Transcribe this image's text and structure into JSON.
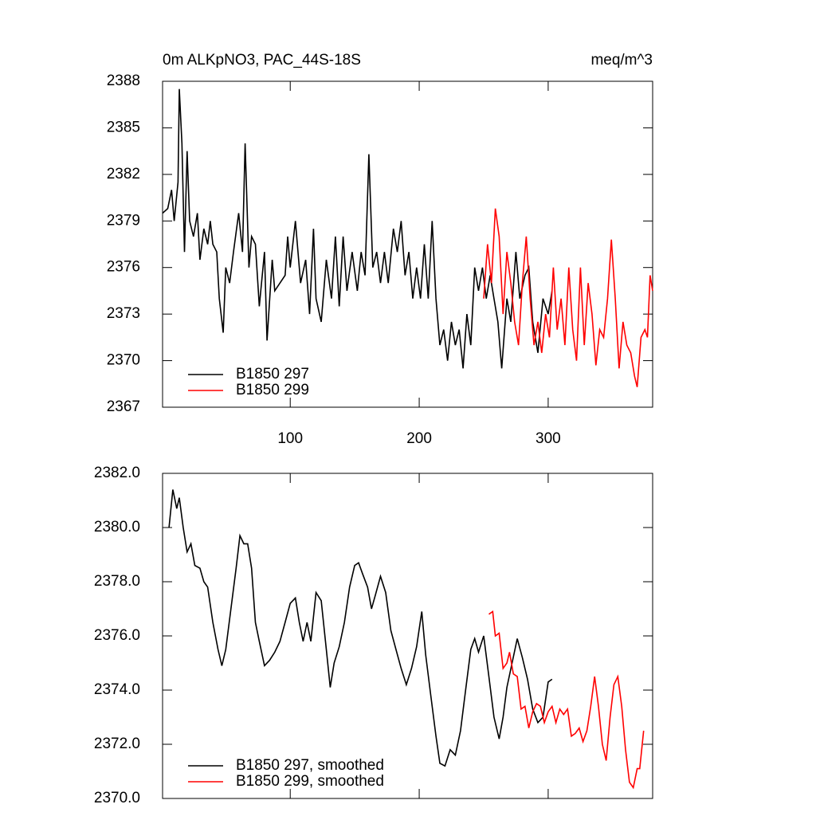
{
  "chart_data": [
    {
      "type": "line",
      "title": "0m ALKpNO3, PAC_44S-18S",
      "units": "meq/m^3",
      "xlim": [
        1,
        381
      ],
      "xticks": [
        100,
        200,
        300
      ],
      "show_xtick_labels": true,
      "ylim": [
        2367,
        2388
      ],
      "yticks": [
        2367,
        2370,
        2373,
        2376,
        2379,
        2382,
        2385,
        2388
      ],
      "legend": "bottom-left",
      "series": [
        {
          "name": "B1850 297",
          "color": "#000000",
          "x": [
            1,
            5,
            8,
            10,
            13,
            14,
            16,
            18,
            20,
            22,
            25,
            28,
            30,
            33,
            36,
            38,
            40,
            43,
            45,
            48,
            50,
            53,
            56,
            60,
            63,
            65,
            68,
            70,
            73,
            76,
            80,
            82,
            86,
            88,
            92,
            96,
            98,
            100,
            104,
            108,
            112,
            115,
            118,
            120,
            124,
            128,
            132,
            135,
            138,
            141,
            144,
            148,
            152,
            155,
            158,
            161,
            164,
            167,
            170,
            173,
            176,
            180,
            183,
            186,
            189,
            192,
            195,
            198,
            201,
            204,
            207,
            210,
            213,
            216,
            219,
            222,
            225,
            228,
            231,
            234,
            237,
            240,
            243,
            246,
            249,
            252,
            255,
            258,
            261,
            264,
            268,
            271,
            275,
            278,
            282,
            285,
            288,
            292,
            296,
            300,
            303
          ],
          "values": [
            2379.5,
            2379.8,
            2381,
            2379,
            2381.5,
            2387.5,
            2384,
            2377,
            2383.5,
            2379,
            2378,
            2379.5,
            2376.5,
            2378.5,
            2377.5,
            2379,
            2377.5,
            2377,
            2374,
            2371.8,
            2376,
            2375,
            2377,
            2379.5,
            2377,
            2384,
            2376,
            2378,
            2377.5,
            2373.5,
            2377,
            2371.3,
            2376.5,
            2374.5,
            2375,
            2375.5,
            2378,
            2376,
            2379,
            2375,
            2376.5,
            2373,
            2378.5,
            2374,
            2372.5,
            2376.5,
            2374,
            2378,
            2373.5,
            2378,
            2374.5,
            2377,
            2374.5,
            2377,
            2375.5,
            2383.3,
            2376,
            2377,
            2375,
            2377,
            2375,
            2378.5,
            2377,
            2379,
            2375.5,
            2377,
            2374,
            2376,
            2374,
            2377.5,
            2374,
            2379,
            2374,
            2371,
            2372,
            2370,
            2372.5,
            2371,
            2372,
            2369.5,
            2373,
            2371,
            2376,
            2374.5,
            2376,
            2374,
            2375.5,
            2374,
            2372.5,
            2369.5,
            2374,
            2372.5,
            2377,
            2374,
            2375.5,
            2376,
            2372.5,
            2370.5,
            2374,
            2373,
            2374.5
          ]
        },
        {
          "name": "B1850 299",
          "color": "#ff0000",
          "x": [
            250,
            253,
            256,
            259,
            262,
            265,
            268,
            271,
            274,
            277,
            280,
            283,
            286,
            289,
            292,
            295,
            298,
            301,
            304,
            307,
            310,
            313,
            316,
            319,
            322,
            325,
            328,
            331,
            334,
            337,
            340,
            343,
            346,
            349,
            352,
            355,
            358,
            361,
            364,
            367,
            369,
            372,
            375,
            377,
            379,
            381
          ],
          "values": [
            2374,
            2377.5,
            2375,
            2379.8,
            2378,
            2373,
            2377,
            2375,
            2372.5,
            2371,
            2375,
            2378,
            2374,
            2371,
            2372.5,
            2370.5,
            2373,
            2371.5,
            2376,
            2372,
            2374,
            2371,
            2376,
            2372,
            2370,
            2376,
            2371,
            2375,
            2373,
            2369.7,
            2372,
            2371.5,
            2374,
            2377.8,
            2374,
            2369.5,
            2372.5,
            2371,
            2370.5,
            2369,
            2368.3,
            2371.5,
            2372,
            2371.5,
            2375.5,
            2374.5
          ]
        }
      ]
    },
    {
      "type": "line",
      "xlim": [
        1,
        381
      ],
      "xticks": [
        100,
        200,
        300
      ],
      "show_xtick_labels": false,
      "ylim": [
        2370,
        2382
      ],
      "yticks": [
        {
          "value": 2370,
          "label": "2370.0"
        },
        {
          "value": 2372,
          "label": "2372.0"
        },
        {
          "value": 2374,
          "label": "2374.0"
        },
        {
          "value": 2376,
          "label": "2376.0"
        },
        {
          "value": 2378,
          "label": "2378.0"
        },
        {
          "value": 2380,
          "label": "2380.0"
        },
        {
          "value": 2382,
          "label": "2382.0"
        }
      ],
      "legend": "bottom-left",
      "series": [
        {
          "name": "B1850 297, smoothed",
          "color": "#000000",
          "x": [
            6,
            9,
            12,
            14,
            17,
            20,
            23,
            26,
            30,
            33,
            36,
            40,
            44,
            47,
            50,
            54,
            58,
            61,
            64,
            67,
            70,
            73,
            76,
            80,
            84,
            88,
            92,
            96,
            100,
            104,
            107,
            110,
            113,
            116,
            120,
            124,
            128,
            131,
            134,
            138,
            142,
            146,
            150,
            153,
            156,
            160,
            163,
            166,
            170,
            174,
            178,
            182,
            186,
            190,
            194,
            198,
            202,
            205,
            209,
            213,
            216,
            220,
            224,
            228,
            232,
            236,
            240,
            243,
            246,
            250,
            254,
            258,
            262,
            265,
            268,
            272,
            276,
            280,
            284,
            288,
            292,
            296,
            300,
            303
          ],
          "values": [
            2380,
            2381.4,
            2380.7,
            2381.1,
            2380,
            2379.1,
            2379.4,
            2378.6,
            2378.5,
            2378,
            2377.8,
            2376.5,
            2375.5,
            2374.9,
            2375.5,
            2377,
            2378.5,
            2379.7,
            2379.4,
            2379.4,
            2378.5,
            2376.5,
            2375.8,
            2374.9,
            2375.1,
            2375.4,
            2375.8,
            2376.5,
            2377.2,
            2377.4,
            2376.5,
            2375.8,
            2376.5,
            2375.8,
            2377.6,
            2377.3,
            2375.5,
            2374.1,
            2375,
            2375.6,
            2376.5,
            2377.8,
            2378.6,
            2378.7,
            2378.3,
            2377.8,
            2377,
            2377.5,
            2378.2,
            2377.6,
            2376.2,
            2375.5,
            2374.8,
            2374.2,
            2374.8,
            2375.6,
            2376.9,
            2375.3,
            2373.8,
            2372.3,
            2371.3,
            2371.2,
            2371.8,
            2371.6,
            2372.5,
            2374,
            2375.5,
            2375.9,
            2375.4,
            2376,
            2374.5,
            2373,
            2372.2,
            2373,
            2374.1,
            2375,
            2375.9,
            2375.2,
            2374.4,
            2373.3,
            2372.8,
            2373,
            2374.3,
            2374.4
          ]
        },
        {
          "name": "B1850 299, smoothed",
          "color": "#ff0000",
          "x": [
            254,
            257,
            259,
            262,
            265,
            268,
            270,
            273,
            276,
            279,
            282,
            285,
            288,
            291,
            294,
            297,
            300,
            303,
            306,
            309,
            312,
            315,
            318,
            321,
            324,
            327,
            330,
            333,
            336,
            339,
            342,
            345,
            348,
            351,
            354,
            357,
            360,
            363,
            366,
            369,
            371,
            374
          ],
          "values": [
            2376.8,
            2376.9,
            2376,
            2376.1,
            2374.8,
            2375,
            2375.4,
            2374.6,
            2374.5,
            2373.3,
            2373.4,
            2372.6,
            2373.2,
            2373.5,
            2373.4,
            2372.8,
            2373.2,
            2373.4,
            2372.8,
            2373.3,
            2373.1,
            2373.3,
            2372.3,
            2372.4,
            2372.6,
            2372.1,
            2372.5,
            2373.4,
            2374.5,
            2373.4,
            2372,
            2371.4,
            2373,
            2374.2,
            2374.5,
            2373.4,
            2371.8,
            2370.6,
            2370.4,
            2371.1,
            2371.1,
            2372.5
          ]
        }
      ]
    }
  ]
}
